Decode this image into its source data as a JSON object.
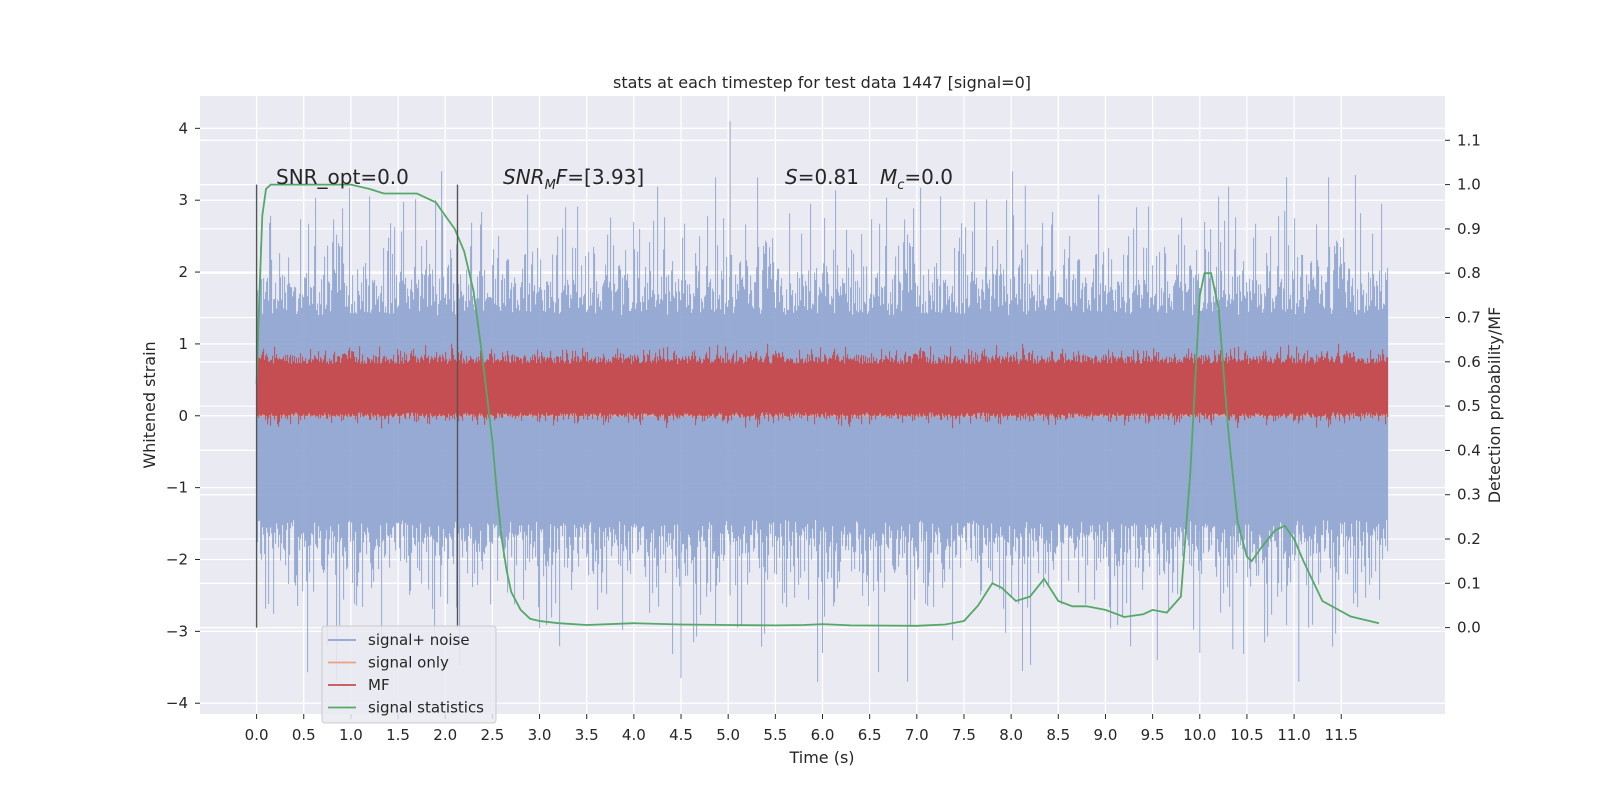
{
  "chart_data": {
    "type": "line",
    "title": "stats at each timestep for test data 1447 [signal=0]",
    "xlabel": "Time (s)",
    "ylabel": "Whitened strain",
    "y2label": "Detection probability/MF",
    "xlim": [
      -0.6,
      12.6
    ],
    "ylim": [
      -4.15,
      4.45
    ],
    "y2lim": [
      -0.195,
      1.2
    ],
    "x_ticks": [
      0.0,
      0.5,
      1.0,
      1.5,
      2.0,
      2.5,
      3.0,
      3.5,
      4.0,
      4.5,
      5.0,
      5.5,
      6.0,
      6.5,
      7.0,
      7.5,
      8.0,
      8.5,
      9.0,
      9.5,
      10.0,
      10.5,
      11.0,
      11.5
    ],
    "x_tick_labels": [
      "0.0",
      "0.5",
      "1.0",
      "1.5",
      "2.0",
      "2.5",
      "3.0",
      "3.5",
      "4.0",
      "4.5",
      "5.0",
      "5.5",
      "6.0",
      "6.5",
      "7.0",
      "7.5",
      "8.0",
      "8.5",
      "9.0",
      "9.5",
      "10.0",
      "10.5",
      "11.0",
      "11.5"
    ],
    "y_ticks": [
      4,
      3,
      2,
      1,
      0,
      -1,
      -2,
      -3,
      -4
    ],
    "y_tick_labels": [
      "4",
      "3",
      "2",
      "1",
      "0",
      "−1",
      "−2",
      "−3",
      "−4"
    ],
    "y2_ticks": [
      1.1,
      1.0,
      0.9,
      0.8,
      0.7,
      0.6,
      0.5,
      0.4,
      0.3,
      0.2,
      0.1,
      0.0
    ],
    "y2_tick_labels": [
      "1.1",
      "1.0",
      "0.9",
      "0.8",
      "0.7",
      "0.6",
      "0.5",
      "0.4",
      "0.3",
      "0.2",
      "0.1",
      "0.0"
    ],
    "grid": true,
    "legend_position": "lower-left",
    "annotations": {
      "snr_opt": "SNR_opt=0.0",
      "snr_mf_main": "SNR",
      "snr_mf_sub": "M",
      "snr_mf_rest": "F=[3.93]",
      "s_main": "S",
      "s_rest": "=0.81",
      "mc_main": "M",
      "mc_sub": "c",
      "mc_rest": "=0.0"
    },
    "vertical_markers": [
      0.0,
      2.13
    ],
    "series": [
      {
        "name": "signal+ noise",
        "color": "#8da3cf",
        "axis": "left",
        "style": "noise",
        "x_range": [
          0.0,
          12.0
        ],
        "band_core": [
          -1.45,
          1.4
        ],
        "peak_min": -3.7,
        "peak_max": 4.1,
        "spikes": [
          [
            5.02,
            4.1
          ],
          [
            5.02,
            -2.5
          ],
          [
            11.05,
            -3.7
          ],
          [
            8.12,
            -3.55
          ],
          [
            9.55,
            -3.4
          ],
          [
            10.0,
            -3.3
          ],
          [
            10.35,
            -3.25
          ],
          [
            11.65,
            3.35
          ],
          [
            6.0,
            -3.3
          ],
          [
            0.75,
            -3.2
          ],
          [
            4.5,
            -3.65
          ],
          [
            10.2,
            3.05
          ],
          [
            8.15,
            3.2
          ],
          [
            10.9,
            2.85
          ]
        ]
      },
      {
        "name": "signal only",
        "color": "#e8a283",
        "axis": "left",
        "style": "line",
        "x": [
          0.0,
          12.0
        ],
        "y": [
          0.0,
          0.0
        ]
      },
      {
        "name": "MF",
        "color": "#c44e52",
        "axis": "left",
        "style": "noise",
        "x_range": [
          0.0,
          12.0
        ],
        "band_core": [
          0.05,
          0.72
        ],
        "peak_min": 0.0,
        "peak_max": 1.0
      },
      {
        "name": "signal statistics",
        "color": "#55a868",
        "axis": "right",
        "style": "line",
        "x": [
          0.0,
          0.03,
          0.06,
          0.1,
          0.15,
          0.25,
          0.4,
          0.6,
          0.8,
          1.0,
          1.2,
          1.35,
          1.5,
          1.7,
          1.9,
          2.0,
          2.1,
          2.2,
          2.3,
          2.4,
          2.5,
          2.55,
          2.6,
          2.65,
          2.7,
          2.8,
          2.9,
          3.0,
          3.2,
          3.5,
          4.0,
          4.5,
          5.0,
          5.5,
          5.8,
          6.0,
          6.3,
          7.0,
          7.3,
          7.5,
          7.65,
          7.8,
          7.9,
          8.05,
          8.2,
          8.35,
          8.5,
          8.65,
          8.8,
          9.0,
          9.2,
          9.4,
          9.5,
          9.65,
          9.8,
          9.9,
          10.0,
          10.05,
          10.12,
          10.2,
          10.3,
          10.4,
          10.5,
          10.55,
          10.65,
          10.8,
          10.9,
          11.0,
          11.1,
          11.3,
          11.6,
          11.9
        ],
        "y": [
          0.55,
          0.75,
          0.93,
          0.99,
          1.0,
          1.0,
          1.0,
          1.0,
          1.0,
          1.0,
          0.99,
          0.98,
          0.98,
          0.98,
          0.96,
          0.93,
          0.9,
          0.85,
          0.76,
          0.6,
          0.42,
          0.3,
          0.2,
          0.13,
          0.08,
          0.04,
          0.02,
          0.015,
          0.01,
          0.006,
          0.01,
          0.007,
          0.006,
          0.005,
          0.006,
          0.008,
          0.005,
          0.004,
          0.007,
          0.015,
          0.05,
          0.1,
          0.09,
          0.06,
          0.07,
          0.11,
          0.06,
          0.048,
          0.048,
          0.04,
          0.024,
          0.03,
          0.04,
          0.034,
          0.07,
          0.35,
          0.75,
          0.8,
          0.8,
          0.72,
          0.45,
          0.24,
          0.16,
          0.15,
          0.18,
          0.22,
          0.23,
          0.2,
          0.15,
          0.06,
          0.025,
          0.01
        ]
      }
    ]
  }
}
